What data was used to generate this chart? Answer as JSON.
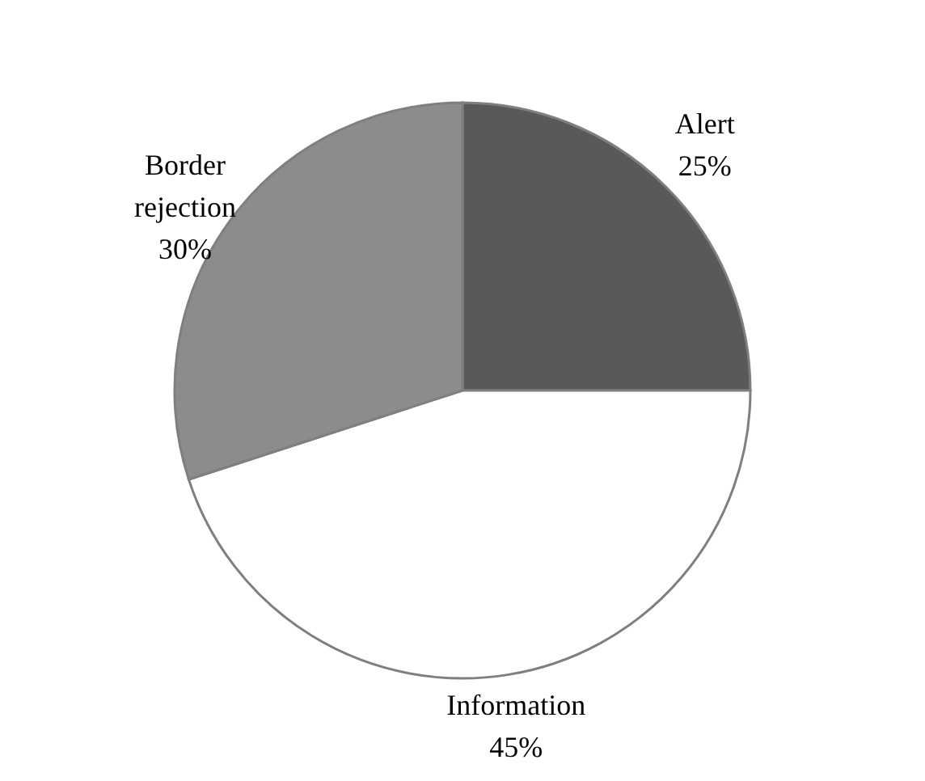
{
  "chart_data": {
    "type": "pie",
    "categories": [
      "Alert",
      "Information",
      "Border rejection"
    ],
    "values": [
      25,
      45,
      30
    ],
    "value_labels": [
      "25%",
      "45%",
      "30%"
    ],
    "colors": [
      "#595959",
      "#ffffff",
      "#8c8c8c"
    ],
    "legend": false
  }
}
